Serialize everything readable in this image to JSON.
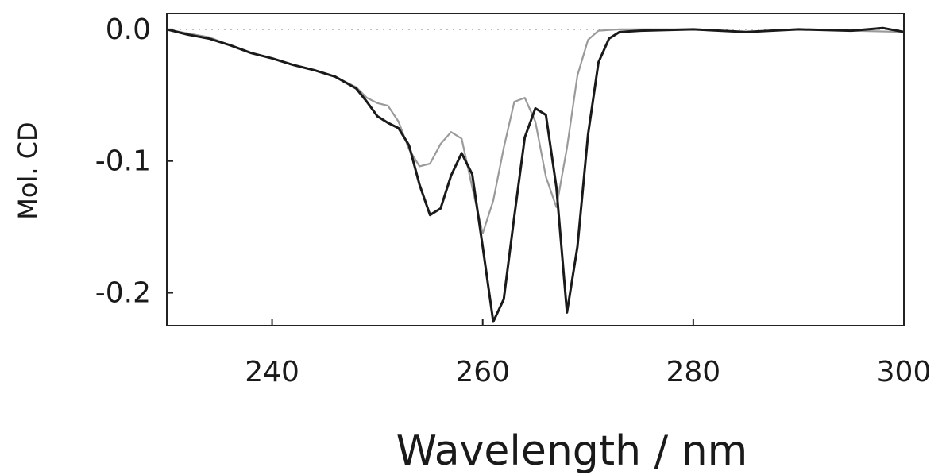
{
  "chart_data": {
    "type": "line",
    "title": "",
    "xlabel": "Wavelength / nm",
    "ylabel": "Mol. CD",
    "xlim": [
      230,
      300
    ],
    "ylim": [
      -0.225,
      0.012
    ],
    "x_ticks": [
      {
        "value": 240,
        "label": "240"
      },
      {
        "value": 260,
        "label": "260"
      },
      {
        "value": 280,
        "label": "280"
      },
      {
        "value": 300,
        "label": "300"
      }
    ],
    "y_ticks": [
      {
        "value": 0.0,
        "label": "0.0"
      },
      {
        "value": -0.1,
        "label": "-0.1"
      },
      {
        "value": -0.2,
        "label": "-0.2"
      }
    ],
    "reference_line": {
      "y": 0.0,
      "style": "dotted"
    },
    "grid": false,
    "legend": "none",
    "series": [
      {
        "color": "#1a1a1a",
        "points": [
          [
            230,
            0.0
          ],
          [
            232,
            -0.004
          ],
          [
            234,
            -0.007
          ],
          [
            236,
            -0.012
          ],
          [
            238,
            -0.018
          ],
          [
            240,
            -0.022
          ],
          [
            242,
            -0.027
          ],
          [
            244,
            -0.031
          ],
          [
            246,
            -0.036
          ],
          [
            248,
            -0.045
          ],
          [
            249,
            -0.055
          ],
          [
            250,
            -0.066
          ],
          [
            251,
            -0.071
          ],
          [
            252,
            -0.075
          ],
          [
            253,
            -0.088
          ],
          [
            254,
            -0.118
          ],
          [
            255,
            -0.141
          ],
          [
            256,
            -0.136
          ],
          [
            257,
            -0.111
          ],
          [
            258,
            -0.094
          ],
          [
            259,
            -0.11
          ],
          [
            260,
            -0.165
          ],
          [
            261,
            -0.222
          ],
          [
            262,
            -0.205
          ],
          [
            263,
            -0.142
          ],
          [
            264,
            -0.082
          ],
          [
            265,
            -0.06
          ],
          [
            266,
            -0.065
          ],
          [
            267,
            -0.12
          ],
          [
            268,
            -0.215
          ],
          [
            269,
            -0.165
          ],
          [
            270,
            -0.08
          ],
          [
            271,
            -0.025
          ],
          [
            272,
            -0.007
          ],
          [
            273,
            -0.002
          ],
          [
            275,
            -0.001
          ],
          [
            280,
            0.0
          ],
          [
            285,
            -0.002
          ],
          [
            290,
            0.0
          ],
          [
            295,
            -0.001
          ],
          [
            298,
            0.001
          ],
          [
            300,
            -0.002
          ]
        ]
      },
      {
        "color": "#9a9a9a",
        "points": [
          [
            230,
            0.0
          ],
          [
            232,
            -0.003
          ],
          [
            234,
            -0.006
          ],
          [
            236,
            -0.012
          ],
          [
            238,
            -0.018
          ],
          [
            240,
            -0.022
          ],
          [
            242,
            -0.027
          ],
          [
            244,
            -0.031
          ],
          [
            246,
            -0.036
          ],
          [
            248,
            -0.044
          ],
          [
            249,
            -0.052
          ],
          [
            250,
            -0.056
          ],
          [
            251,
            -0.058
          ],
          [
            252,
            -0.07
          ],
          [
            253,
            -0.091
          ],
          [
            254,
            -0.104
          ],
          [
            255,
            -0.102
          ],
          [
            256,
            -0.087
          ],
          [
            257,
            -0.078
          ],
          [
            258,
            -0.083
          ],
          [
            259,
            -0.12
          ],
          [
            260,
            -0.155
          ],
          [
            261,
            -0.13
          ],
          [
            262,
            -0.09
          ],
          [
            263,
            -0.055
          ],
          [
            264,
            -0.052
          ],
          [
            265,
            -0.07
          ],
          [
            266,
            -0.112
          ],
          [
            267,
            -0.135
          ],
          [
            268,
            -0.09
          ],
          [
            269,
            -0.035
          ],
          [
            270,
            -0.008
          ],
          [
            271,
            -0.001
          ],
          [
            273,
            0.0
          ],
          [
            280,
            0.0
          ],
          [
            285,
            -0.002
          ],
          [
            290,
            0.0
          ],
          [
            295,
            -0.001
          ],
          [
            300,
            -0.002
          ]
        ]
      }
    ]
  }
}
